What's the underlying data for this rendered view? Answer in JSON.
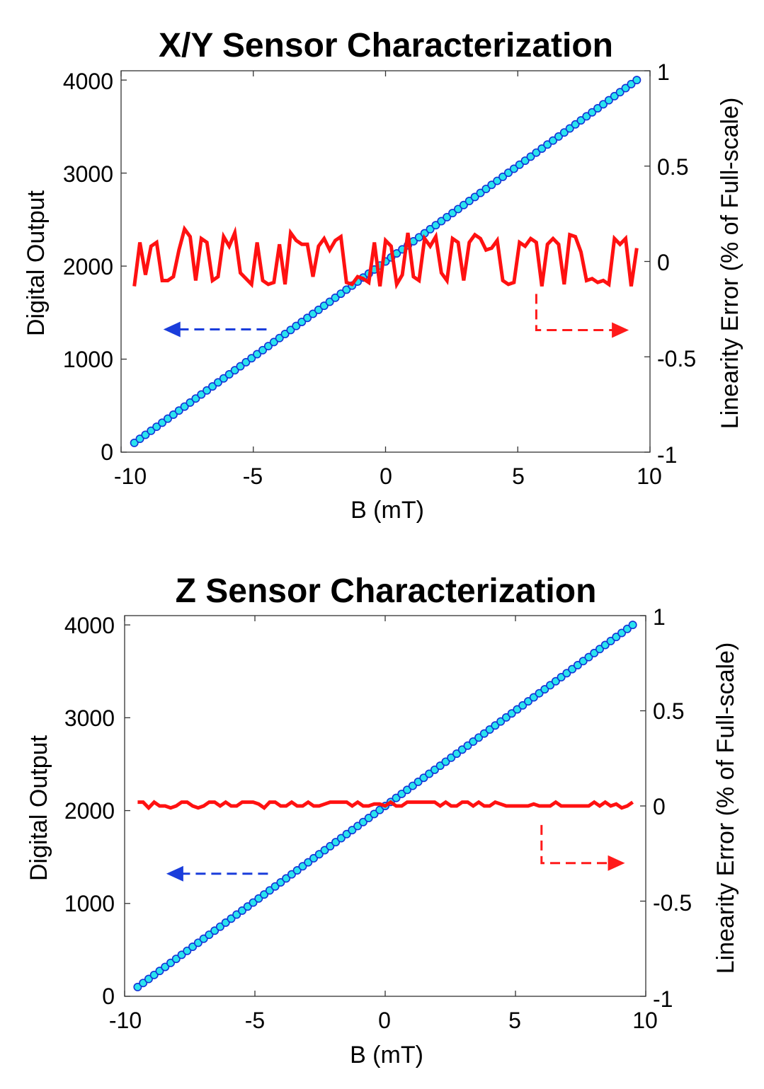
{
  "colors": {
    "linear_fill": "#29e3ee",
    "linear_stroke": "#1433d6",
    "error_line": "#ff1111",
    "left_arrow": "#1a3ddb",
    "right_arrow": "#ff1a1a"
  },
  "chart_data": [
    {
      "type": "line",
      "title": "X/Y Sensor Characterization",
      "xlabel": "B (mT)",
      "ylabel": "Digital Output",
      "y2label": "Linearity Error (% of Full-scale)",
      "xlim": [
        -10,
        10
      ],
      "ylim": [
        0,
        4100
      ],
      "y2lim": [
        -1,
        1
      ],
      "xticks": [
        "-10",
        "-5",
        "0",
        "5",
        "10"
      ],
      "yticks": [
        "0",
        "1000",
        "2000",
        "3000",
        "4000"
      ],
      "y2ticks": [
        "-1",
        "-0.5",
        "0",
        "0.5",
        "1"
      ],
      "grid": false,
      "series": [
        {
          "axis": "left",
          "marker": "circle",
          "x_start": -9.5,
          "x_end": 9.5,
          "y_start": 100,
          "y_end": 4000,
          "point_count": 91
        },
        {
          "axis": "right",
          "marker": "none",
          "x_start": -9.5,
          "x_end": 9.5,
          "values": [
            -0.13,
            0.1,
            -0.07,
            0.08,
            0.1,
            -0.1,
            -0.1,
            -0.08,
            0.06,
            0.17,
            0.13,
            -0.1,
            0.12,
            0.1,
            -0.1,
            -0.08,
            0.13,
            0.08,
            0.15,
            -0.06,
            -0.09,
            -0.12,
            0.1,
            -0.1,
            -0.12,
            -0.11,
            0.09,
            -0.12,
            0.15,
            0.11,
            0.09,
            0.09,
            -0.08,
            0.08,
            0.12,
            0.06,
            0.11,
            0.13,
            -0.11,
            -0.12,
            -0.08,
            -0.09,
            -0.11,
            0.1,
            -0.13,
            0.11,
            0.08,
            -0.12,
            -0.07,
            0.15,
            -0.08,
            -0.1,
            0.12,
            0.08,
            0.13,
            -0.06,
            -0.1,
            0.12,
            0.1,
            -0.1,
            0.1,
            0.14,
            0.12,
            0.06,
            0.07,
            0.11,
            -0.1,
            -0.12,
            -0.11,
            0.1,
            0.08,
            0.12,
            0.1,
            -0.13,
            0.09,
            0.12,
            0.09,
            -0.12,
            0.14,
            0.13,
            0.05,
            -0.1,
            -0.09,
            -0.11,
            -0.1,
            -0.12,
            0.12,
            0.09,
            0.12,
            -0.13,
            0.07
          ]
        }
      ],
      "arrows": [
        {
          "axis": "left",
          "direction": "left",
          "x_from": -4.5,
          "x_to": -8.4,
          "y": 1320
        },
        {
          "axis": "right",
          "direction": "right",
          "x_drop": 5.7,
          "y2_top": -0.17,
          "y2_arrow": -0.36,
          "x_to": 9.2
        }
      ]
    },
    {
      "type": "line",
      "title": "Z Sensor Characterization",
      "xlabel": "B (mT)",
      "ylabel": "Digital Output",
      "y2label": "Linearity Error (% of Full-scale)",
      "xlim": [
        -10,
        10
      ],
      "ylim": [
        0,
        4100
      ],
      "y2lim": [
        -1,
        1
      ],
      "xticks": [
        "-10",
        "-5",
        "0",
        "5",
        "10"
      ],
      "yticks": [
        "0",
        "1000",
        "2000",
        "3000",
        "4000"
      ],
      "y2ticks": [
        "-1",
        "-0.5",
        "0",
        "0.5",
        "1"
      ],
      "grid": false,
      "series": [
        {
          "axis": "left",
          "marker": "circle",
          "x_start": -9.5,
          "x_end": 9.5,
          "y_start": 100,
          "y_end": 4000,
          "point_count": 91
        },
        {
          "axis": "right",
          "marker": "none",
          "x_start": -9.5,
          "x_end": 9.5,
          "values": [
            0.02,
            0.02,
            -0.01,
            0.02,
            0.0,
            0.0,
            -0.01,
            0.0,
            0.02,
            0.02,
            0.0,
            -0.01,
            0.0,
            0.02,
            0.02,
            0.0,
            0.02,
            0.0,
            0.0,
            0.02,
            0.02,
            0.02,
            0.01,
            -0.01,
            0.02,
            0.02,
            0.0,
            0.0,
            0.02,
            0.0,
            0.0,
            0.02,
            0.0,
            0.0,
            0.01,
            0.02,
            0.02,
            0.02,
            0.02,
            0.0,
            0.02,
            0.0,
            0.0,
            0.01,
            0.01,
            0.0,
            0.02,
            0.0,
            0.0,
            0.02,
            0.02,
            0.02,
            0.02,
            0.02,
            0.02,
            0.0,
            0.02,
            0.0,
            0.0,
            0.02,
            0.02,
            0.0,
            0.02,
            0.0,
            0.0,
            0.02,
            0.01,
            0.0,
            0.0,
            0.0,
            0.0,
            0.0,
            0.01,
            0.0,
            0.0,
            0.0,
            0.02,
            0.0,
            0.0,
            0.0,
            0.0,
            0.0,
            0.0,
            0.02,
            0.0,
            0.02,
            0.0,
            0.01,
            -0.01,
            0.0,
            0.02
          ]
        }
      ],
      "arrows": [
        {
          "axis": "left",
          "direction": "left",
          "x_from": -4.5,
          "x_to": -8.4,
          "y": 1320
        },
        {
          "axis": "right",
          "direction": "right",
          "x_drop": 6.0,
          "y2_top": -0.1,
          "y2_arrow": -0.3,
          "x_to": 9.2
        }
      ]
    }
  ]
}
